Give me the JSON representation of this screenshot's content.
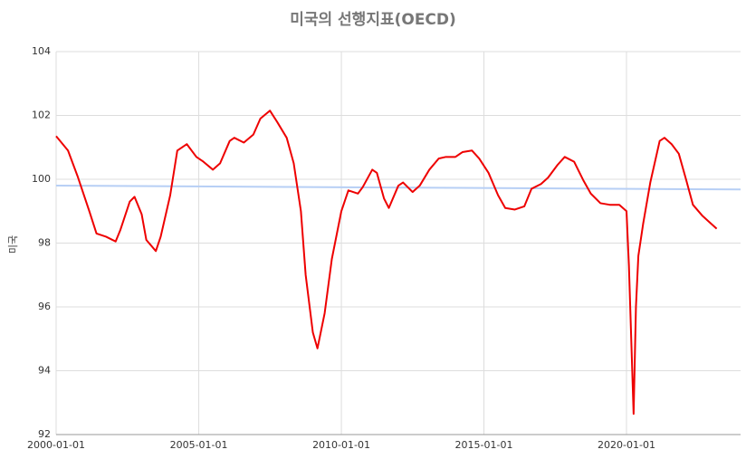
{
  "chart_data": {
    "type": "line",
    "title": "미국의 선행지표(OECD)",
    "y_label": "미국",
    "xlim": [
      "2000-01-01",
      "2024-01-01"
    ],
    "xticks": [
      "2000-01-01",
      "2005-01-01",
      "2010-01-01",
      "2015-01-01",
      "2020-01-01"
    ],
    "ylim": [
      92,
      104
    ],
    "yticks": [
      92,
      94,
      96,
      98,
      100,
      102,
      104
    ],
    "grid": true,
    "series": [
      {
        "color": "#ee0000",
        "x": [
          "2000-01-01",
          "2000-06-01",
          "2000-10-01",
          "2001-03-01",
          "2001-06-01",
          "2001-10-01",
          "2002-02-01",
          "2002-04-01",
          "2002-08-01",
          "2002-10-01",
          "2003-01-01",
          "2003-03-01",
          "2003-07-01",
          "2003-09-01",
          "2004-01-01",
          "2004-04-01",
          "2004-08-01",
          "2004-12-01",
          "2005-03-01",
          "2005-07-01",
          "2005-10-01",
          "2006-02-01",
          "2006-04-01",
          "2006-08-01",
          "2006-12-01",
          "2007-03-01",
          "2007-07-01",
          "2007-10-01",
          "2008-02-01",
          "2008-05-01",
          "2008-08-01",
          "2008-10-01",
          "2009-01-01",
          "2009-03-01",
          "2009-06-01",
          "2009-09-01",
          "2010-01-01",
          "2010-04-01",
          "2010-08-01",
          "2010-10-01",
          "2011-02-01",
          "2011-04-01",
          "2011-07-01",
          "2011-09-01",
          "2012-01-01",
          "2012-03-01",
          "2012-07-01",
          "2012-10-01",
          "2013-02-01",
          "2013-06-01",
          "2013-09-01",
          "2014-01-01",
          "2014-04-01",
          "2014-08-01",
          "2014-11-01",
          "2015-03-01",
          "2015-07-01",
          "2015-10-01",
          "2016-02-01",
          "2016-06-01",
          "2016-09-01",
          "2017-01-01",
          "2017-04-01",
          "2017-08-01",
          "2017-11-01",
          "2018-03-01",
          "2018-07-01",
          "2018-10-01",
          "2019-02-01",
          "2019-06-01",
          "2019-10-01",
          "2020-01-01",
          "2020-02-01",
          "2020-04-01",
          "2020-05-01",
          "2020-06-01",
          "2020-08-01",
          "2020-11-01",
          "2021-03-01",
          "2021-05-01",
          "2021-08-01",
          "2021-11-01",
          "2022-02-01",
          "2022-05-01",
          "2022-09-01",
          "2022-12-01",
          "2023-03-01"
        ],
        "values": [
          101.35,
          100.9,
          100.1,
          99.0,
          98.3,
          98.2,
          98.05,
          98.4,
          99.3,
          99.45,
          98.9,
          98.1,
          97.75,
          98.2,
          99.5,
          100.9,
          101.1,
          100.7,
          100.55,
          100.3,
          100.5,
          101.2,
          101.3,
          101.15,
          101.4,
          101.9,
          102.15,
          101.8,
          101.3,
          100.5,
          99.0,
          97.0,
          95.2,
          94.7,
          95.8,
          97.5,
          99.0,
          99.65,
          99.55,
          99.75,
          100.3,
          100.2,
          99.4,
          99.1,
          99.8,
          99.9,
          99.6,
          99.8,
          100.3,
          100.65,
          100.7,
          100.7,
          100.85,
          100.9,
          100.65,
          100.2,
          99.5,
          99.1,
          99.05,
          99.15,
          99.7,
          99.85,
          100.05,
          100.45,
          100.7,
          100.55,
          99.95,
          99.55,
          99.25,
          99.2,
          99.2,
          99.0,
          97.3,
          92.65,
          96.0,
          97.6,
          98.6,
          99.9,
          101.2,
          101.3,
          101.1,
          100.8,
          100.0,
          99.2,
          98.85,
          98.65,
          98.45
        ]
      },
      {
        "color": "#b7cff5",
        "x": [
          "2000-01-01",
          "2024-01-01"
        ],
        "values": [
          99.8,
          99.68
        ]
      }
    ]
  }
}
